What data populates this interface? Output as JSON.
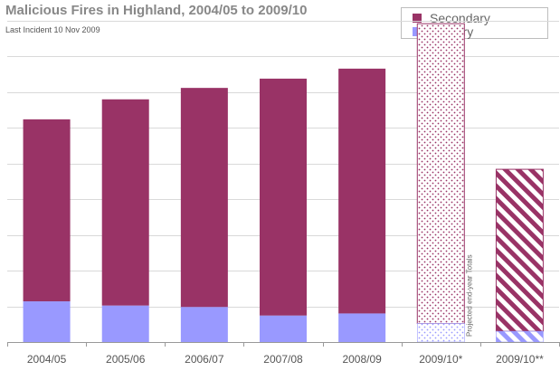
{
  "chart_data": {
    "type": "bar",
    "stacked": true,
    "title": "Malicious Fires in Highland, 2004/05 to 2009/10",
    "subtitle": "Last Incident 10 Nov 2009",
    "categories": [
      "2004/05",
      "2005/06",
      "2006/07",
      "2007/08",
      "2008/09",
      "2009/10*",
      "2009/10**"
    ],
    "series": [
      {
        "name": "Primary",
        "color": "#9999ff",
        "values": [
          57,
          51,
          49,
          37,
          40,
          26,
          15
        ]
      },
      {
        "name": "Secondary",
        "color": "#993366",
        "values": [
          255,
          289,
          307,
          332,
          343,
          420,
          227
        ]
      }
    ],
    "patterns": [
      "solid",
      "solid",
      "solid",
      "solid",
      "solid",
      "dotted",
      "diagonal-stripes"
    ],
    "ylim": [
      0,
      450
    ],
    "gridline_step": 50,
    "yaxis_labels": false,
    "grid": true,
    "legend": {
      "position": "top-right",
      "order": [
        "Secondary",
        "Primary"
      ]
    },
    "annotations": [
      {
        "text": "Projected end-year Totals",
        "category": "2009/10*"
      }
    ]
  }
}
